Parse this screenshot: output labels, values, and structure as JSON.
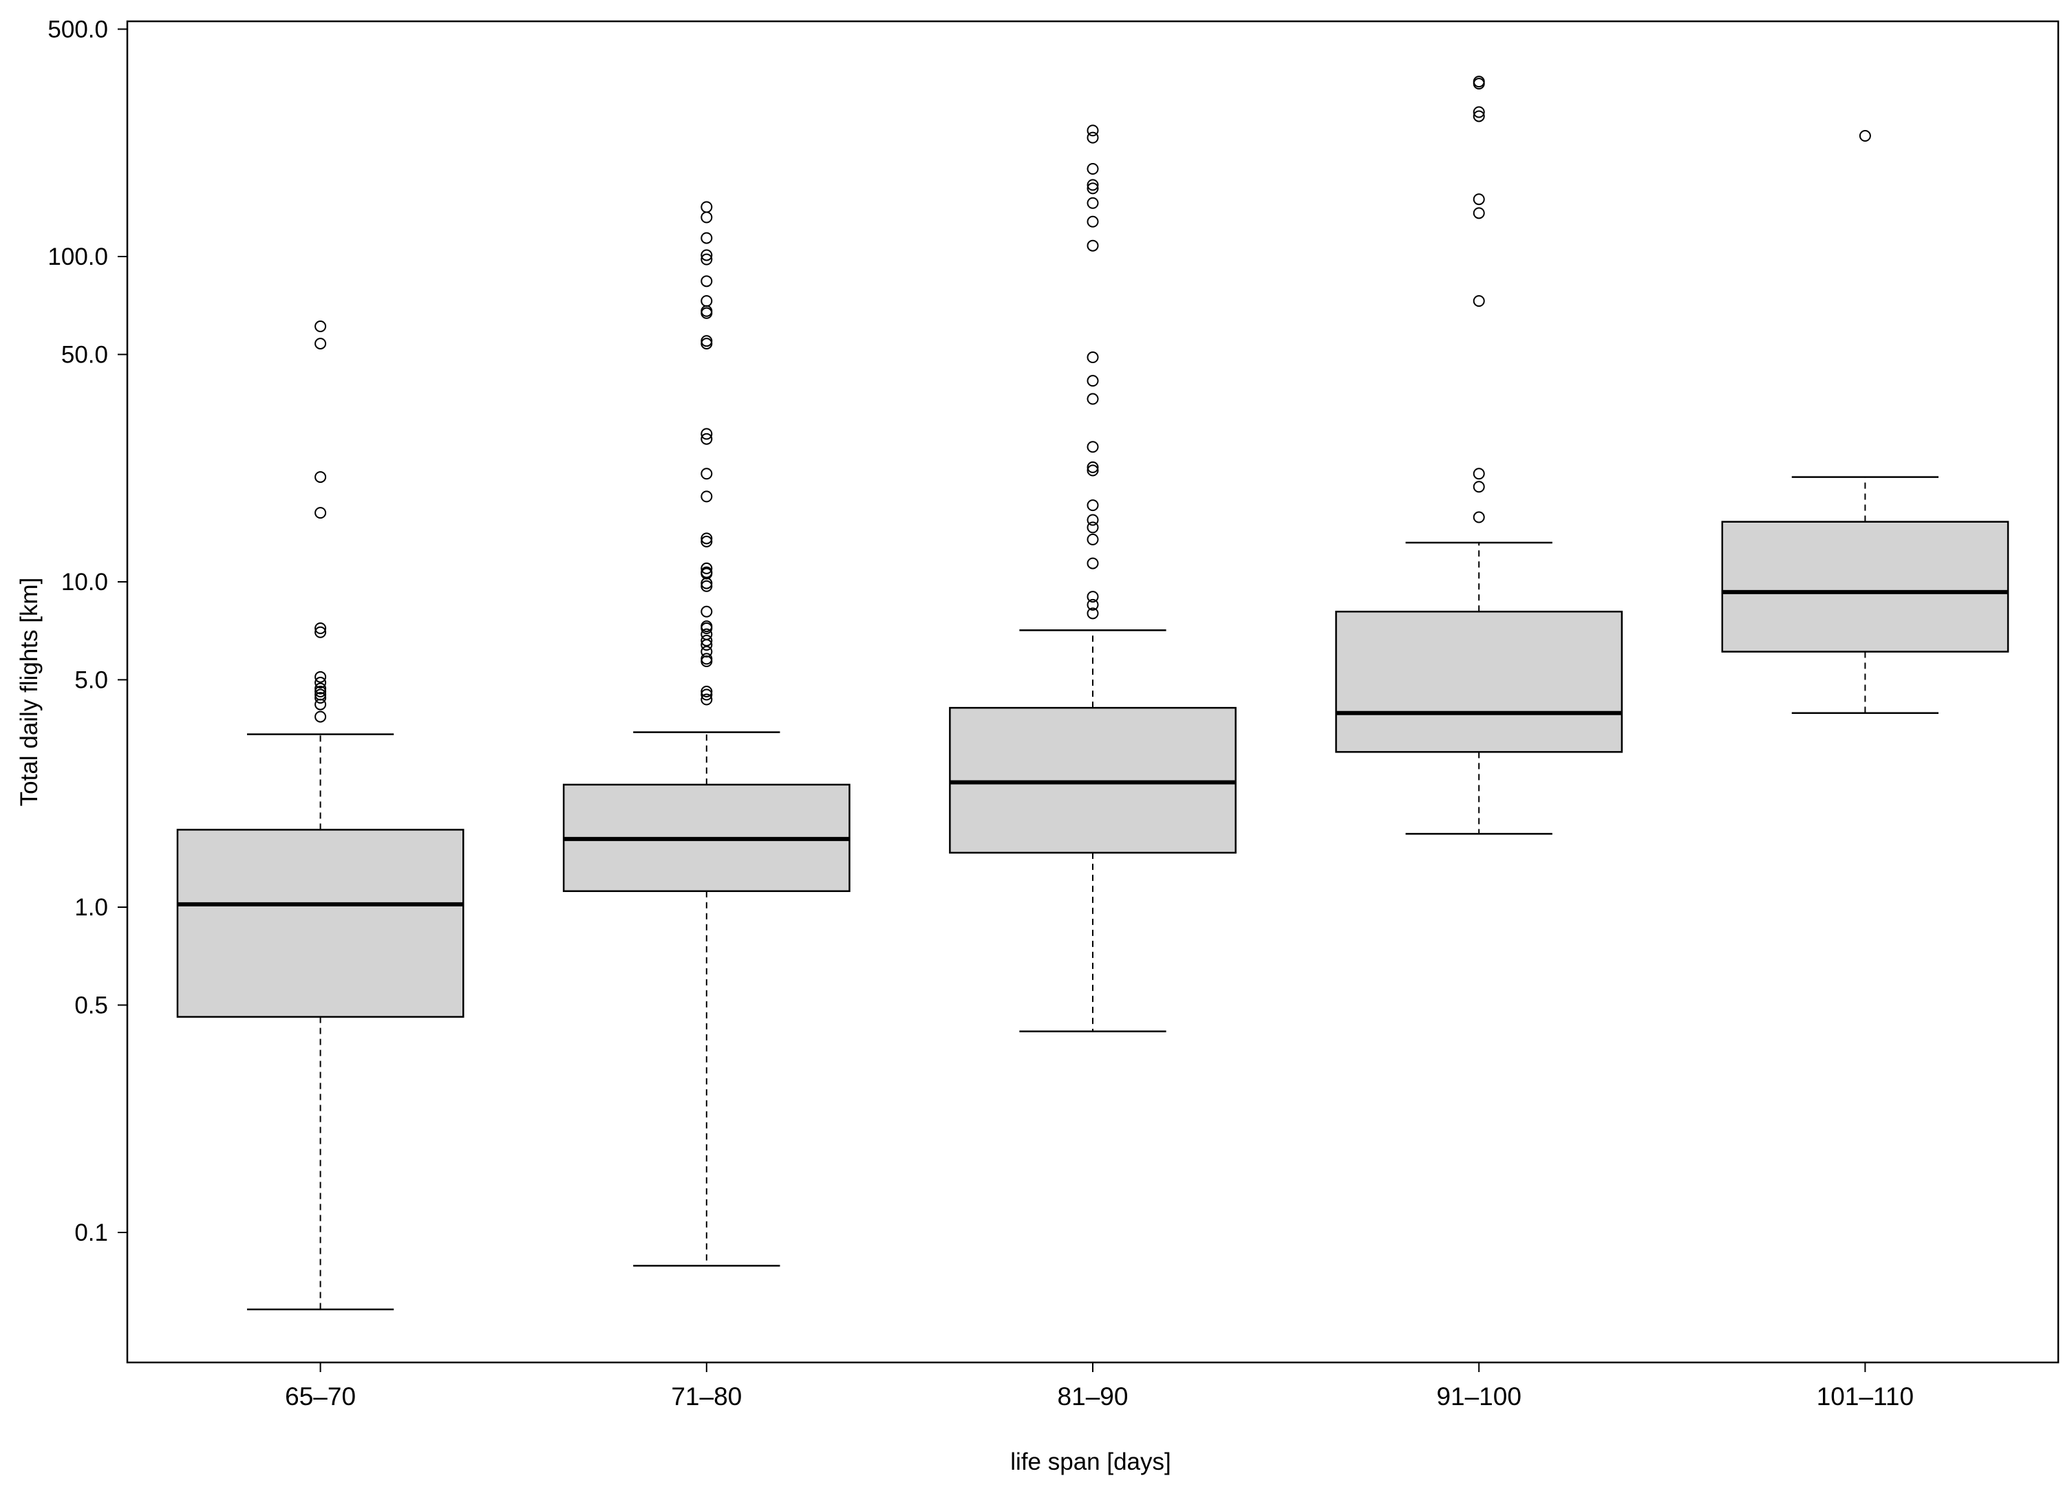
{
  "chart_data": {
    "type": "boxplot",
    "xlabel": "life span [days]",
    "ylabel": "Total daily flights [km]",
    "yscale": "log",
    "ylim": [
      0.04,
      500
    ],
    "yticks": [
      {
        "value": 500,
        "label": "500.0"
      },
      {
        "value": 100,
        "label": "100.0"
      },
      {
        "value": 50,
        "label": "50.0"
      },
      {
        "value": 10,
        "label": "10.0"
      },
      {
        "value": 5,
        "label": "5.0"
      },
      {
        "value": 1,
        "label": "1.0"
      },
      {
        "value": 0.5,
        "label": "0.5"
      },
      {
        "value": 0.1,
        "label": "0.1"
      }
    ],
    "grid": false,
    "box_fill": "#d3d3d3",
    "line_color": "#000000",
    "categories": [
      "65–70",
      "71–80",
      "81–90",
      "91–100",
      "101–110"
    ],
    "boxes": [
      {
        "category": "65–70",
        "whisker_low": 0.058,
        "q1": 0.46,
        "median": 1.02,
        "q3": 1.73,
        "whisker_high": 3.4,
        "outliers": [
          61,
          54,
          21,
          16.3,
          7.2,
          7.0,
          5.1,
          4.9,
          4.7,
          4.6,
          4.5,
          4.4,
          4.2,
          3.85
        ]
      },
      {
        "category": "71–80",
        "whisker_low": 0.079,
        "q1": 1.12,
        "median": 1.62,
        "q3": 2.38,
        "whisker_high": 3.45,
        "outliers": [
          142,
          132,
          114,
          101,
          98,
          84,
          73,
          68,
          67,
          55,
          54,
          28.5,
          27.5,
          21.5,
          18.3,
          13.6,
          13.3,
          11,
          10.7,
          10.6,
          9.9,
          9.7,
          8.1,
          7.3,
          7.2,
          6.9,
          6.6,
          6.4,
          6.1,
          5.8,
          5.7,
          4.6,
          4.5,
          4.35
        ]
      },
      {
        "category": "81–90",
        "whisker_low": 0.415,
        "q1": 1.47,
        "median": 2.42,
        "q3": 4.1,
        "whisker_high": 7.1,
        "outliers": [
          244,
          232,
          186,
          166,
          162,
          146,
          128,
          108,
          49,
          41.5,
          36.5,
          26,
          22.5,
          22,
          17.2,
          15.5,
          14.7,
          13.5,
          11.4,
          9.0,
          8.5,
          8.0
        ]
      },
      {
        "category": "91–100",
        "whisker_low": 1.68,
        "q1": 3.0,
        "median": 3.95,
        "q3": 8.1,
        "whisker_high": 13.2,
        "outliers": [
          345,
          340,
          278,
          270,
          150,
          136,
          73,
          21.5,
          19.6,
          15.8
        ]
      },
      {
        "category": "101–110",
        "whisker_low": 3.95,
        "q1": 6.1,
        "median": 9.3,
        "q3": 15.3,
        "whisker_high": 21,
        "outliers": [
          235
        ]
      }
    ]
  }
}
